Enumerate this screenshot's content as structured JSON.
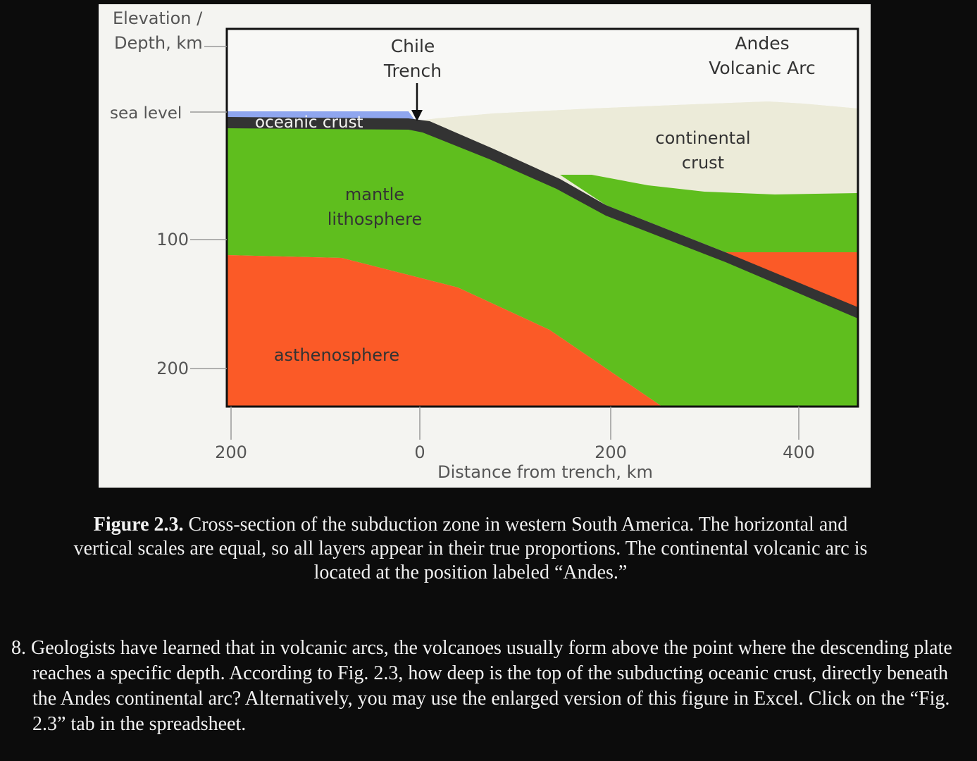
{
  "figure": {
    "axis": {
      "y_title_line1": "Elevation /",
      "y_title_line2": "Depth, km",
      "y_sea_level": "sea level",
      "y_tick_100": "100",
      "y_tick_200": "200",
      "x_ticks": [
        "200",
        "0",
        "200",
        "400"
      ],
      "x_title": "Distance from trench, km"
    },
    "labels": {
      "trench_line1": "Chile",
      "trench_line2": "Trench",
      "arc_line1": "Andes",
      "arc_line2": "Volcanic Arc",
      "oceanic_crust": "oceanic crust",
      "mantle_line1": "mantle",
      "mantle_line2": "lithosphere",
      "continental_line1": "continental",
      "continental_line2": "crust",
      "asthenosphere": "asthenosphere"
    },
    "colors": {
      "ocean": "#8fa6ef",
      "continental_crust": "#ecebd9",
      "mantle_lithosphere": "#5fbe1e",
      "asthenosphere": "#fb5a27",
      "slab_crust": "#333333"
    }
  },
  "caption": {
    "label": "Figure 2.3.",
    "text": " Cross-section of the subduction zone in western South America. The horizontal and vertical scales are equal, so all layers appear in their true proportions. The continental volcanic arc is located at the position labeled “Andes.”"
  },
  "question": {
    "text": "8. Geologists have learned that in volcanic arcs, the volcanoes usually form above the point where the descending plate reaches a specific depth. According to Fig. 2.3, how deep is the top of the subducting oceanic crust, directly beneath the Andes continental arc? Alternatively, you may use the enlarged version of this figure in Excel. Click on the “Fig. 2.3” tab in the spreadsheet."
  }
}
